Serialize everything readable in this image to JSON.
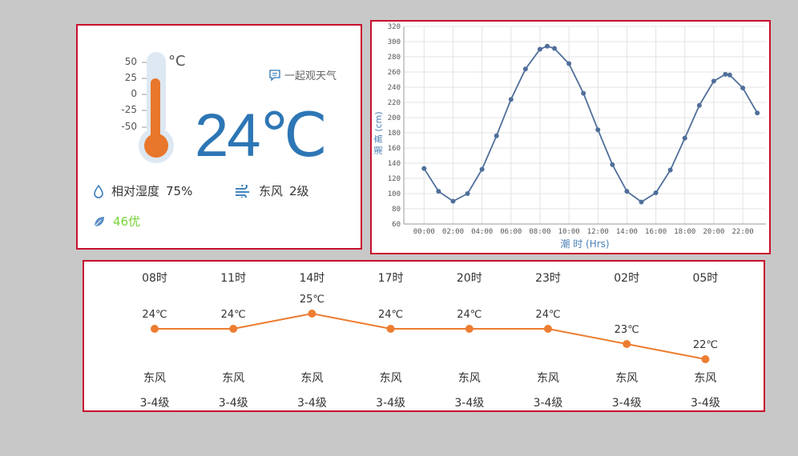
{
  "weather": {
    "thermometer_scale": [
      "50",
      "25",
      "0",
      "-25",
      "-50"
    ],
    "thermometer_unit": "°C",
    "temperature": "24℃",
    "share_label": "一起观天气",
    "humidity_label": "相对湿度",
    "humidity_value": "75%",
    "wind_direction": "东风",
    "wind_level": "2级",
    "aqi_value": "46",
    "aqi_level": "优",
    "colors": {
      "accent": "#2d76b5",
      "thermo_fill": "#e8762b",
      "aqi": "#78d33a"
    },
    "icons": [
      "thermometer-icon",
      "share-chat-icon",
      "water-drop-icon",
      "wind-icon",
      "leaf-icon"
    ]
  },
  "chart_data": {
    "type": "line",
    "xlabel": "潮 时 (Hrs)",
    "ylabel": "潮 高 (cm)",
    "xlim": [
      -1.4,
      23.6
    ],
    "ylim": [
      60,
      320
    ],
    "yticks": [
      60,
      80,
      100,
      120,
      140,
      160,
      180,
      200,
      220,
      240,
      260,
      280,
      300,
      320
    ],
    "xticks": [
      "00:00",
      "02:00",
      "04:00",
      "06:00",
      "08:00",
      "10:00",
      "12:00",
      "14:00",
      "16:00",
      "18:00",
      "20:00",
      "22:00"
    ],
    "grid": true,
    "color": "#4f6f9a",
    "x": [
      0,
      1,
      2,
      3,
      4,
      5,
      6,
      7,
      8,
      8.5,
      9,
      10,
      11,
      12,
      13,
      14,
      15,
      16,
      17,
      18,
      19,
      20,
      20.8,
      21.1,
      22,
      23
    ],
    "y": [
      133,
      103,
      90,
      100,
      132,
      176,
      224,
      264,
      290,
      294,
      291,
      271,
      232,
      184,
      138,
      103,
      89,
      101,
      131,
      173,
      216,
      248,
      257,
      256,
      239,
      206
    ]
  },
  "hourly": [
    {
      "time": "08时",
      "temp": "24℃",
      "value": 24,
      "wind": "东风",
      "level": "3-4级"
    },
    {
      "time": "11时",
      "temp": "24℃",
      "value": 24,
      "wind": "东风",
      "level": "3-4级"
    },
    {
      "time": "14时",
      "temp": "25℃",
      "value": 25,
      "wind": "东风",
      "level": "3-4级"
    },
    {
      "time": "17时",
      "temp": "24℃",
      "value": 24,
      "wind": "东风",
      "level": "3-4级"
    },
    {
      "time": "20时",
      "temp": "24℃",
      "value": 24,
      "wind": "东风",
      "level": "3-4级"
    },
    {
      "time": "23时",
      "temp": "24℃",
      "value": 24,
      "wind": "东风",
      "level": "3-4级"
    },
    {
      "time": "02时",
      "temp": "23℃",
      "value": 23,
      "wind": "东风",
      "level": "3-4级"
    },
    {
      "time": "05时",
      "temp": "22℃",
      "value": 22,
      "wind": "东风",
      "level": "3-4级"
    }
  ],
  "hourly_line_color": "#ed7d31"
}
